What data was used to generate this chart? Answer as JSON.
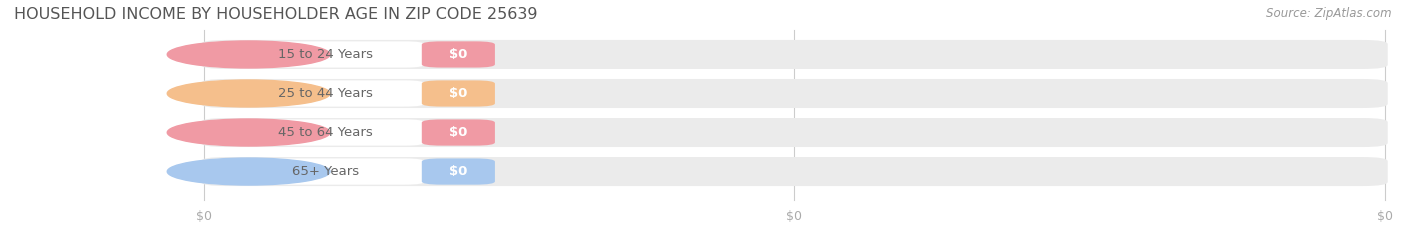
{
  "title": "HOUSEHOLD INCOME BY HOUSEHOLDER AGE IN ZIP CODE 25639",
  "source": "Source: ZipAtlas.com",
  "categories": [
    "15 to 24 Years",
    "25 to 44 Years",
    "45 to 64 Years",
    "65+ Years"
  ],
  "values": [
    0,
    0,
    0,
    0
  ],
  "bar_colors": [
    "#f09aa4",
    "#f5bf8c",
    "#f09aa4",
    "#a8c8ee"
  ],
  "track_bg": "#ebebeb",
  "title_color": "#555555",
  "title_fontsize": 11.5,
  "source_color": "#999999",
  "source_fontsize": 8.5,
  "label_fontsize": 9.5,
  "value_fontsize": 9.5,
  "tick_fontsize": 9,
  "tick_color": "#aaaaaa",
  "xtick_labels": [
    "$0",
    "$0",
    "$0"
  ],
  "background_color": "#ffffff",
  "fig_width": 14.06,
  "fig_height": 2.33
}
